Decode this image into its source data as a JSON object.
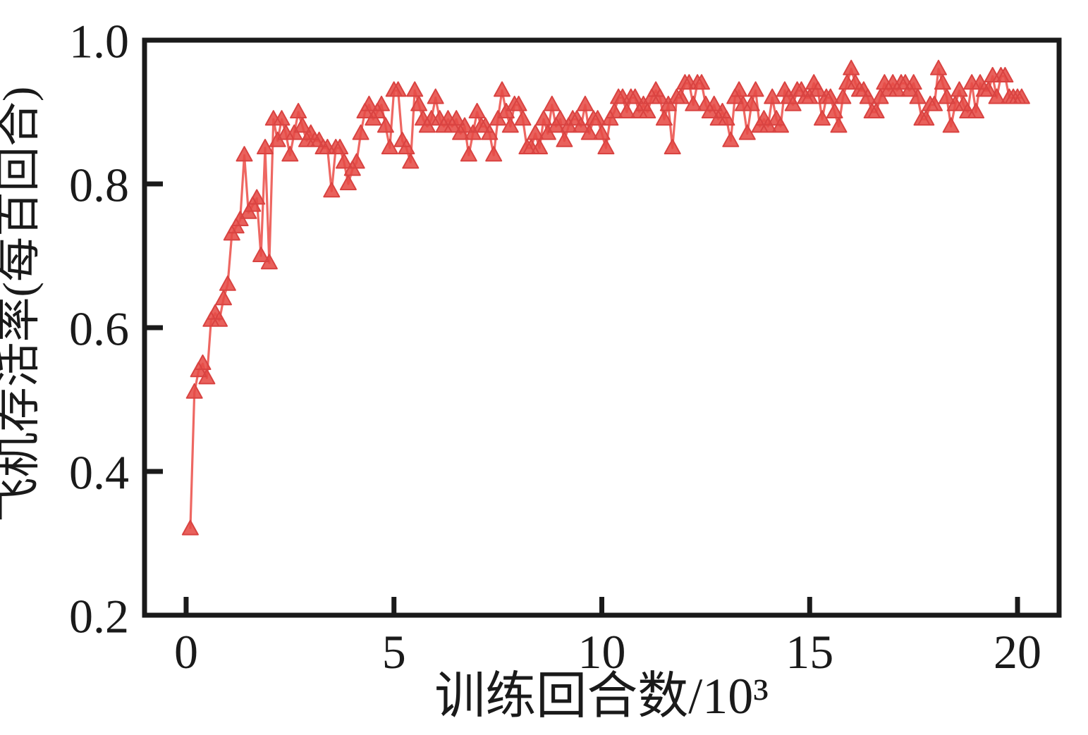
{
  "figure": {
    "background_color": "#ffffff",
    "frame_color": "#1a1a1a",
    "accent_color": "#e8504d"
  },
  "chart_data": {
    "type": "line",
    "marker": "triangle-up",
    "line_color": "#ec5751",
    "marker_fill": "#e64b46",
    "marker_edge": "#d94341",
    "title": "",
    "xlabel": "训练回合数/10³",
    "ylabel": "飞机存活率(每百回合)",
    "xlim": [
      -1,
      21
    ],
    "ylim": [
      0.2,
      1.0
    ],
    "grid": false,
    "legend": null,
    "xticks": [
      0,
      5,
      10,
      15,
      20
    ],
    "xtick_labels": [
      "0",
      "5",
      "10",
      "15",
      "20"
    ],
    "yticks": [
      0.2,
      0.4,
      0.6,
      0.8,
      1.0
    ],
    "ytick_labels": [
      "0.2",
      "0.4",
      "0.6",
      "0.8",
      "1.0"
    ],
    "x": [
      0.1,
      0.2,
      0.3,
      0.4,
      0.5,
      0.6,
      0.7,
      0.8,
      0.9,
      1.0,
      1.1,
      1.2,
      1.3,
      1.4,
      1.5,
      1.6,
      1.7,
      1.8,
      1.9,
      2.0,
      2.1,
      2.2,
      2.3,
      2.4,
      2.5,
      2.6,
      2.7,
      2.8,
      2.9,
      3.0,
      3.1,
      3.2,
      3.3,
      3.4,
      3.5,
      3.6,
      3.7,
      3.8,
      3.9,
      4.0,
      4.1,
      4.2,
      4.3,
      4.4,
      4.5,
      4.6,
      4.7,
      4.8,
      4.9,
      5.0,
      5.1,
      5.2,
      5.3,
      5.4,
      5.5,
      5.6,
      5.7,
      5.8,
      5.9,
      6.0,
      6.1,
      6.2,
      6.3,
      6.4,
      6.5,
      6.6,
      6.7,
      6.8,
      6.9,
      7.0,
      7.1,
      7.2,
      7.3,
      7.4,
      7.5,
      7.6,
      7.7,
      7.8,
      7.9,
      8.0,
      8.1,
      8.2,
      8.3,
      8.4,
      8.5,
      8.6,
      8.7,
      8.8,
      8.9,
      9.0,
      9.1,
      9.2,
      9.3,
      9.4,
      9.5,
      9.6,
      9.7,
      9.8,
      9.9,
      10.0,
      10.1,
      10.2,
      10.3,
      10.4,
      10.5,
      10.6,
      10.7,
      10.8,
      10.9,
      11.0,
      11.1,
      11.2,
      11.3,
      11.4,
      11.5,
      11.6,
      11.7,
      11.8,
      11.9,
      12.0,
      12.1,
      12.2,
      12.3,
      12.4,
      12.5,
      12.6,
      12.7,
      12.8,
      12.9,
      13.0,
      13.1,
      13.2,
      13.3,
      13.4,
      13.5,
      13.6,
      13.7,
      13.8,
      13.9,
      14.0,
      14.1,
      14.2,
      14.3,
      14.4,
      14.5,
      14.6,
      14.7,
      14.8,
      14.9,
      15.0,
      15.1,
      15.2,
      15.3,
      15.4,
      15.5,
      15.6,
      15.7,
      15.8,
      15.9,
      16.0,
      16.1,
      16.2,
      16.3,
      16.4,
      16.5,
      16.6,
      16.7,
      16.8,
      16.9,
      17.0,
      17.1,
      17.2,
      17.3,
      17.4,
      17.5,
      17.6,
      17.7,
      17.8,
      17.9,
      18.0,
      18.1,
      18.2,
      18.3,
      18.4,
      18.5,
      18.6,
      18.7,
      18.8,
      18.9,
      19.0,
      19.1,
      19.2,
      19.3,
      19.4,
      19.5,
      19.6,
      19.7,
      19.8,
      19.9,
      20.0,
      20.1
    ],
    "y": [
      0.32,
      0.51,
      0.54,
      0.55,
      0.53,
      0.61,
      0.62,
      0.61,
      0.64,
      0.66,
      0.73,
      0.74,
      0.75,
      0.84,
      0.76,
      0.77,
      0.78,
      0.7,
      0.85,
      0.69,
      0.89,
      0.86,
      0.89,
      0.87,
      0.84,
      0.87,
      0.9,
      0.88,
      0.86,
      0.87,
      0.86,
      0.86,
      0.85,
      0.85,
      0.79,
      0.85,
      0.85,
      0.83,
      0.8,
      0.82,
      0.83,
      0.87,
      0.9,
      0.91,
      0.89,
      0.9,
      0.91,
      0.88,
      0.85,
      0.93,
      0.93,
      0.86,
      0.85,
      0.83,
      0.93,
      0.91,
      0.89,
      0.88,
      0.89,
      0.92,
      0.89,
      0.88,
      0.89,
      0.88,
      0.89,
      0.87,
      0.88,
      0.84,
      0.87,
      0.9,
      0.88,
      0.88,
      0.87,
      0.84,
      0.89,
      0.93,
      0.9,
      0.88,
      0.91,
      0.91,
      0.89,
      0.85,
      0.85,
      0.87,
      0.85,
      0.89,
      0.87,
      0.91,
      0.88,
      0.89,
      0.86,
      0.88,
      0.89,
      0.89,
      0.88,
      0.91,
      0.87,
      0.89,
      0.89,
      0.87,
      0.85,
      0.89,
      0.9,
      0.92,
      0.92,
      0.9,
      0.92,
      0.92,
      0.9,
      0.91,
      0.9,
      0.92,
      0.93,
      0.92,
      0.89,
      0.91,
      0.85,
      0.92,
      0.92,
      0.94,
      0.94,
      0.91,
      0.94,
      0.94,
      0.91,
      0.9,
      0.91,
      0.89,
      0.9,
      0.89,
      0.86,
      0.92,
      0.93,
      0.91,
      0.87,
      0.91,
      0.93,
      0.88,
      0.89,
      0.88,
      0.92,
      0.89,
      0.88,
      0.93,
      0.92,
      0.91,
      0.93,
      0.93,
      0.92,
      0.92,
      0.94,
      0.93,
      0.89,
      0.92,
      0.92,
      0.9,
      0.88,
      0.92,
      0.94,
      0.96,
      0.94,
      0.93,
      0.93,
      0.92,
      0.9,
      0.9,
      0.92,
      0.94,
      0.93,
      0.94,
      0.93,
      0.94,
      0.94,
      0.93,
      0.94,
      0.92,
      0.89,
      0.89,
      0.91,
      0.91,
      0.96,
      0.94,
      0.92,
      0.88,
      0.91,
      0.93,
      0.91,
      0.9,
      0.94,
      0.9,
      0.94,
      0.93,
      0.93,
      0.95,
      0.92,
      0.95,
      0.95,
      0.92,
      0.92,
      0.92,
      0.92
    ]
  }
}
